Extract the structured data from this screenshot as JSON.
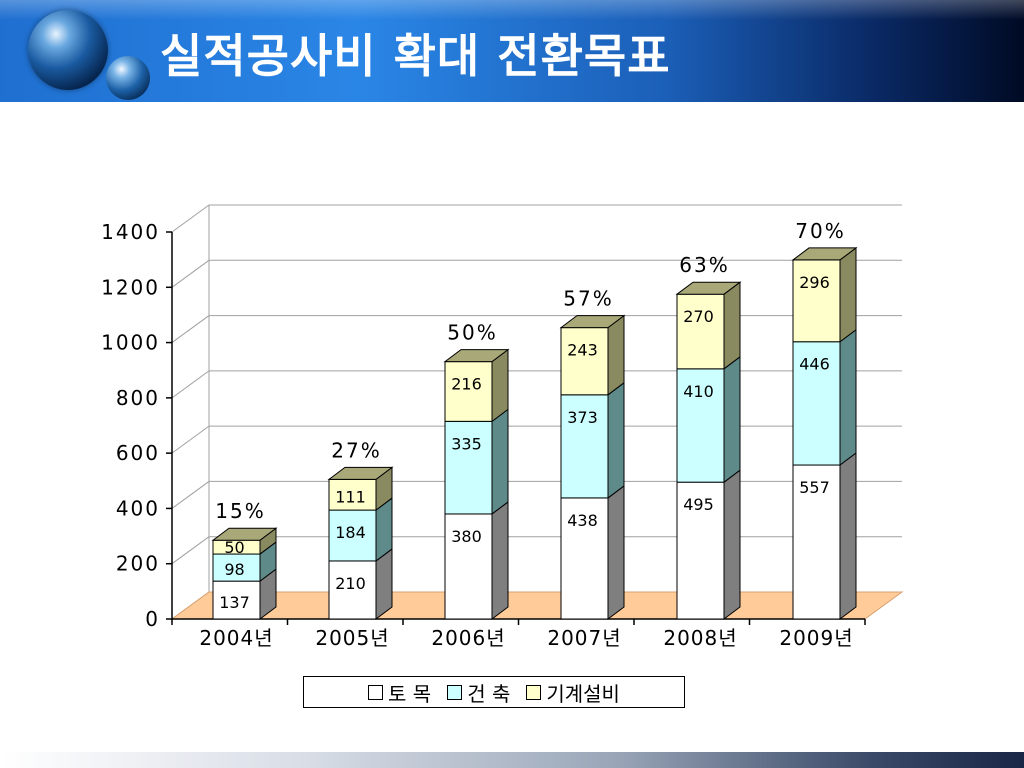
{
  "slide": {
    "title": "실적공사비 확대 전환목표"
  },
  "chart_data": {
    "type": "bar",
    "stacked": true,
    "three_d": true,
    "categories": [
      "2004년",
      "2005년",
      "2006년",
      "2007년",
      "2008년",
      "2009년"
    ],
    "series": [
      {
        "name": "토  목",
        "values": [
          137,
          210,
          380,
          438,
          495,
          557
        ],
        "color": "#ffffff"
      },
      {
        "name": "건  축",
        "values": [
          98,
          184,
          335,
          373,
          410,
          446
        ],
        "color": "#ccffff"
      },
      {
        "name": "기계설비",
        "values": [
          50,
          111,
          216,
          243,
          270,
          296
        ],
        "color": "#ffffcc"
      }
    ],
    "percent_labels": [
      "15%",
      "27%",
      "50%",
      "57%",
      "63%",
      "70%"
    ],
    "y_ticks": [
      "0",
      "200",
      "400",
      "600",
      "800",
      "1000",
      "1200",
      "1400"
    ],
    "ylim": [
      0,
      1400
    ],
    "grid": true,
    "legend_position": "bottom",
    "floor_color": "#ffcc99"
  }
}
